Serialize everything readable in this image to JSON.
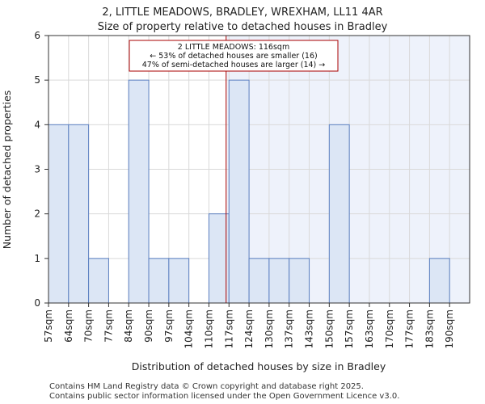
{
  "chart_data": {
    "type": "bar",
    "title": "2, LITTLE MEADOWS, BRADLEY, WREXHAM, LL11 4AR",
    "subtitle": "Size of property relative to detached houses in Bradley",
    "xlabel": "Distribution of detached houses by size in Bradley",
    "ylabel": "Number of detached properties",
    "categories": [
      "57sqm",
      "64sqm",
      "70sqm",
      "77sqm",
      "84sqm",
      "90sqm",
      "97sqm",
      "104sqm",
      "110sqm",
      "117sqm",
      "124sqm",
      "130sqm",
      "137sqm",
      "143sqm",
      "150sqm",
      "157sqm",
      "163sqm",
      "170sqm",
      "177sqm",
      "183sqm",
      "190sqm"
    ],
    "values": [
      4,
      4,
      1,
      0,
      5,
      1,
      1,
      0,
      2,
      5,
      1,
      1,
      1,
      0,
      4,
      0,
      0,
      0,
      0,
      1,
      0
    ],
    "ylim": [
      0,
      6
    ],
    "yticks": [
      0,
      1,
      2,
      3,
      4,
      5,
      6
    ],
    "grid": true,
    "marker": {
      "value_sqm": 116,
      "lines": [
        "2 LITTLE MEADOWS: 116sqm",
        "← 53% of detached houses are smaller (16)",
        "47% of semi-detached houses are larger (14) →"
      ]
    },
    "colors": {
      "bar_fill": "#dce6f5",
      "bar_stroke": "#5b7fc0",
      "marker": "#aa0000",
      "highlight_region": "#eef2fb",
      "grid": "#d9d9d9"
    }
  },
  "footer": {
    "line1": "Contains HM Land Registry data © Crown copyright and database right 2025.",
    "line2": "Contains public sector information licensed under the Open Government Licence v3.0."
  }
}
